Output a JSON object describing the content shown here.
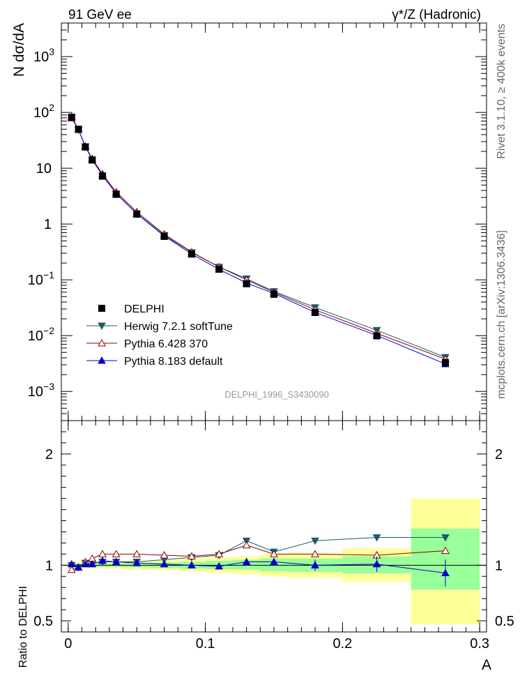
{
  "header": {
    "left": "91 GeV ee",
    "right": "γ*/Z (Hadronic)"
  },
  "side_text": {
    "rivet": "Rivet 3.1.10, ≥ 400k events",
    "mcplots": "mcplots.cern.ch [arXiv:1306.3436]"
  },
  "watermark": "DELPHI_1996_S3430090",
  "chart_data": [
    {
      "type": "line",
      "title": "",
      "xlabel": "A",
      "ylabel": "N dσ/dA",
      "yscale": "log",
      "xlim": [
        -0.005,
        0.305
      ],
      "ylim": [
        0.0003,
        4000
      ],
      "y_ticks": [
        {
          "value": 0.001,
          "base": "10",
          "exp": "−3"
        },
        {
          "value": 0.01,
          "base": "10",
          "exp": "−2"
        },
        {
          "value": 0.1,
          "base": "10",
          "exp": "−1"
        },
        {
          "value": 1,
          "base": "1",
          "exp": ""
        },
        {
          "value": 10,
          "base": "10",
          "exp": ""
        },
        {
          "value": 100,
          "base": "10",
          "exp": "2"
        },
        {
          "value": 1000,
          "base": "10",
          "exp": "3"
        }
      ],
      "x": [
        0.0025,
        0.0075,
        0.0125,
        0.0175,
        0.025,
        0.035,
        0.05,
        0.07,
        0.09,
        0.11,
        0.13,
        0.15,
        0.18,
        0.225,
        0.275
      ],
      "series": [
        {
          "name": "DELPHI",
          "marker": "square",
          "color": "#000000",
          "values": [
            82,
            50,
            24,
            14,
            7.2,
            3.4,
            1.5,
            0.6,
            0.29,
            0.155,
            0.085,
            0.055,
            0.026,
            0.0099,
            0.0033
          ],
          "errors": [
            4,
            2.5,
            1.2,
            0.7,
            0.3,
            0.15,
            0.06,
            0.025,
            0.012,
            0.008,
            0.005,
            0.003,
            0.002,
            0.001,
            0.0006
          ]
        },
        {
          "name": "Herwig 7.2.1 softTune",
          "marker": "triangle-down",
          "color": "#1e5a6a",
          "values": [
            82,
            49,
            24.5,
            14.3,
            7.4,
            3.5,
            1.55,
            0.63,
            0.31,
            0.17,
            0.105,
            0.062,
            0.032,
            0.0125,
            0.0041
          ]
        },
        {
          "name": "Pythia 6.428 370",
          "marker": "triangle-up-open",
          "color": "#8b0000",
          "values": [
            79,
            49,
            24.8,
            14.8,
            7.9,
            3.75,
            1.65,
            0.66,
            0.315,
            0.17,
            0.1,
            0.06,
            0.029,
            0.011,
            0.0038
          ]
        },
        {
          "name": "Pythia 8.183 default",
          "marker": "triangle-up",
          "color": "#0000cc",
          "values": [
            83,
            49,
            24.4,
            14.2,
            7.5,
            3.5,
            1.53,
            0.61,
            0.29,
            0.154,
            0.088,
            0.057,
            0.026,
            0.0101,
            0.0031
          ]
        }
      ]
    },
    {
      "type": "line",
      "title": "",
      "xlabel": "A",
      "ylabel": "Ratio to DELPHI",
      "xlim": [
        -0.005,
        0.305
      ],
      "ylim": [
        0.4,
        2.3
      ],
      "y_ticks": [
        "0.5",
        "1",
        "2"
      ],
      "x_ticks": [
        "0",
        "0.1",
        "0.2",
        "0.3"
      ],
      "bins": [
        [
          0,
          0.005
        ],
        [
          0.005,
          0.01
        ],
        [
          0.01,
          0.015
        ],
        [
          0.015,
          0.02
        ],
        [
          0.02,
          0.03
        ],
        [
          0.03,
          0.04
        ],
        [
          0.04,
          0.06
        ],
        [
          0.06,
          0.08
        ],
        [
          0.08,
          0.1
        ],
        [
          0.1,
          0.12
        ],
        [
          0.12,
          0.14
        ],
        [
          0.14,
          0.16
        ],
        [
          0.16,
          0.2
        ],
        [
          0.2,
          0.25
        ],
        [
          0.25,
          0.3
        ]
      ],
      "band_yellow": [
        [
          0.97,
          1.03
        ],
        [
          0.97,
          1.03
        ],
        [
          0.97,
          1.03
        ],
        [
          0.97,
          1.03
        ],
        [
          0.975,
          1.03
        ],
        [
          0.97,
          1.03
        ],
        [
          0.96,
          1.04
        ],
        [
          0.955,
          1.045
        ],
        [
          0.945,
          1.06
        ],
        [
          0.93,
          1.07
        ],
        [
          0.92,
          1.08
        ],
        [
          0.9,
          1.1
        ],
        [
          0.89,
          1.11
        ],
        [
          0.85,
          1.15
        ],
        [
          0.47,
          1.6
        ]
      ],
      "band_green": [
        [
          0.985,
          1.015
        ],
        [
          0.985,
          1.015
        ],
        [
          0.985,
          1.015
        ],
        [
          0.985,
          1.015
        ],
        [
          0.985,
          1.015
        ],
        [
          0.985,
          1.015
        ],
        [
          0.98,
          1.02
        ],
        [
          0.975,
          1.025
        ],
        [
          0.97,
          1.03
        ],
        [
          0.965,
          1.04
        ],
        [
          0.96,
          1.05
        ],
        [
          0.945,
          1.06
        ],
        [
          0.94,
          1.06
        ],
        [
          0.925,
          1.08
        ],
        [
          0.78,
          1.33
        ]
      ],
      "x": [
        0.0025,
        0.0075,
        0.0125,
        0.0175,
        0.025,
        0.035,
        0.05,
        0.07,
        0.09,
        0.11,
        0.13,
        0.15,
        0.18,
        0.225,
        0.275
      ],
      "series": [
        {
          "name": "Herwig 7.2.1 softTune",
          "marker": "triangle-down",
          "color": "#1e5a6a",
          "values": [
            1.0,
            0.98,
            1.02,
            1.02,
            1.03,
            1.03,
            1.03,
            1.05,
            1.07,
            1.09,
            1.22,
            1.12,
            1.22,
            1.25,
            1.25
          ]
        },
        {
          "name": "Pythia 6.428 370",
          "marker": "triangle-up-open",
          "color": "#8b0000",
          "values": [
            0.96,
            0.98,
            1.03,
            1.06,
            1.1,
            1.1,
            1.1,
            1.09,
            1.08,
            1.1,
            1.18,
            1.1,
            1.1,
            1.09,
            1.13
          ]
        },
        {
          "name": "Pythia 8.183 default",
          "marker": "triangle-up",
          "color": "#0000cc",
          "values": [
            1.01,
            0.98,
            1.01,
            1.01,
            1.04,
            1.03,
            1.02,
            1.01,
            1.0,
            0.99,
            1.03,
            1.03,
            1.0,
            1.01,
            0.93
          ],
          "errors": [
            0.01,
            0.01,
            0.01,
            0.01,
            0.01,
            0.01,
            0.01,
            0.01,
            0.02,
            0.02,
            0.03,
            0.03,
            0.05,
            0.07,
            0.12
          ]
        }
      ]
    }
  ]
}
